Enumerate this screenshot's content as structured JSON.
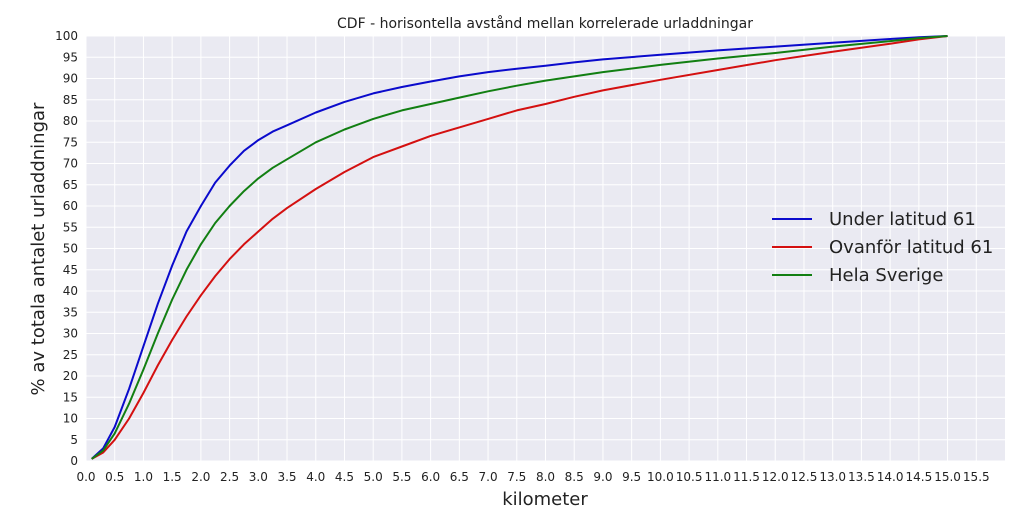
{
  "chart_data": {
    "type": "line",
    "title": "CDF - horisontella avstånd mellan korrelerade urladdningar",
    "xlabel": "kilometer",
    "ylabel": "% av totala antalet urladdningar",
    "xlim": [
      0.0,
      16.0
    ],
    "ylim": [
      0,
      100
    ],
    "xticks": [
      "0.0",
      "0.5",
      "1.0",
      "1.5",
      "2.0",
      "2.5",
      "3.0",
      "3.5",
      "4.0",
      "4.5",
      "5.0",
      "5.5",
      "6.0",
      "6.5",
      "7.0",
      "7.5",
      "8.0",
      "8.5",
      "9.0",
      "9.5",
      "10.0",
      "10.5",
      "11.0",
      "11.5",
      "12.0",
      "12.5",
      "13.0",
      "13.5",
      "14.0",
      "14.5",
      "15.0",
      "15.5"
    ],
    "yticks": [
      "0",
      "5",
      "10",
      "15",
      "20",
      "25",
      "30",
      "35",
      "40",
      "45",
      "50",
      "55",
      "60",
      "65",
      "70",
      "75",
      "80",
      "85",
      "90",
      "95",
      "100"
    ],
    "grid": true,
    "legend_position": "right",
    "series": [
      {
        "name": "Under latitud 61",
        "color": "#0a0acc",
        "x": [
          0.1,
          0.3,
          0.5,
          0.75,
          1.0,
          1.25,
          1.5,
          1.75,
          2.0,
          2.25,
          2.5,
          2.75,
          3.0,
          3.25,
          3.5,
          4.0,
          4.5,
          5.0,
          5.5,
          6.0,
          6.5,
          7.0,
          7.5,
          8.0,
          8.5,
          9.0,
          10.0,
          11.0,
          12.0,
          13.0,
          14.0,
          14.5,
          15.0
        ],
        "y": [
          0.5,
          3,
          8,
          17,
          27,
          37,
          46,
          54,
          60,
          65.5,
          69.5,
          73,
          75.5,
          77.5,
          79,
          82,
          84.5,
          86.5,
          88,
          89.3,
          90.5,
          91.5,
          92.3,
          93,
          93.8,
          94.5,
          95.6,
          96.6,
          97.5,
          98.4,
          99.3,
          99.7,
          100
        ]
      },
      {
        "name": "Ovanför latitud 61",
        "color": "#d41010",
        "x": [
          0.1,
          0.3,
          0.5,
          0.75,
          1.0,
          1.25,
          1.5,
          1.75,
          2.0,
          2.25,
          2.5,
          2.75,
          3.0,
          3.25,
          3.5,
          4.0,
          4.5,
          5.0,
          5.5,
          6.0,
          6.5,
          7.0,
          7.5,
          8.0,
          8.5,
          9.0,
          10.0,
          11.0,
          12.0,
          13.0,
          14.0,
          14.5,
          15.0
        ],
        "y": [
          0.5,
          2,
          5,
          10,
          16,
          22.5,
          28.5,
          34,
          39,
          43.5,
          47.5,
          51,
          54,
          57,
          59.5,
          64,
          68,
          71.5,
          74,
          76.5,
          78.5,
          80.5,
          82.5,
          84,
          85.7,
          87.2,
          89.7,
          92,
          94.3,
          96.3,
          98.2,
          99.2,
          100
        ]
      },
      {
        "name": "Hela Sverige",
        "color": "#127f12",
        "x": [
          0.1,
          0.3,
          0.5,
          0.75,
          1.0,
          1.25,
          1.5,
          1.75,
          2.0,
          2.25,
          2.5,
          2.75,
          3.0,
          3.25,
          3.5,
          4.0,
          4.5,
          5.0,
          5.5,
          6.0,
          6.5,
          7.0,
          7.5,
          8.0,
          8.5,
          9.0,
          10.0,
          11.0,
          12.0,
          13.0,
          14.0,
          14.5,
          15.0
        ],
        "y": [
          0.5,
          2.5,
          6.5,
          13.5,
          21.5,
          30,
          38,
          45,
          51,
          56,
          60,
          63.5,
          66.5,
          69,
          71,
          75,
          78,
          80.5,
          82.5,
          84,
          85.5,
          87,
          88.3,
          89.5,
          90.5,
          91.5,
          93.2,
          94.7,
          96,
          97.5,
          98.8,
          99.5,
          100
        ]
      }
    ]
  }
}
